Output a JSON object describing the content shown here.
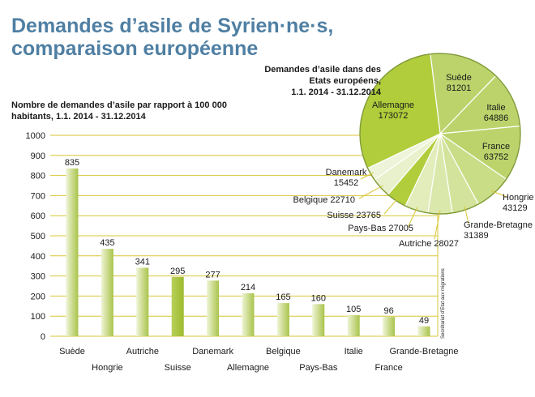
{
  "title_line1": "Demandes d’asile de Syrien·ne·s,",
  "title_line2": "comparaison européenne",
  "source": "Secrétariat d’Etat aux migrations",
  "chart_data": [
    {
      "type": "bar",
      "title_line1": "Nombre de demandes d’asile par rapport à 100 000",
      "title_line2": "habitants, 1.1. 2014 - 31.12.2014",
      "categories": [
        "Suède",
        "Hongrie",
        "Autriche",
        "Suisse",
        "Danemark",
        "Allemagne",
        "Belgique",
        "Pays-Bas",
        "Italie",
        "France",
        "Grande-Bretagne"
      ],
      "values": [
        835,
        435,
        341,
        295,
        277,
        214,
        165,
        160,
        105,
        96,
        49
      ],
      "highlight": "Suisse",
      "ylim": [
        0,
        1000
      ],
      "yticks": [
        0,
        100,
        200,
        300,
        400,
        500,
        600,
        700,
        800,
        900,
        1000
      ],
      "grid": true,
      "colors": {
        "bar": "#c9d98a",
        "highlight": "#9bbb2e",
        "grid": "#d9c634"
      }
    },
    {
      "type": "pie",
      "title_line1": "Demandes d’asile dans des",
      "title_line2": "Etats européens,",
      "title_line3": "1.1. 2014 - 31.12.2014",
      "slices": [
        {
          "label": "Suède",
          "value": 81201
        },
        {
          "label": "Italie",
          "value": 64886
        },
        {
          "label": "France",
          "value": 63752
        },
        {
          "label": "Hongrie",
          "value": 43129
        },
        {
          "label": "Grande-Bretagne",
          "value": 31389
        },
        {
          "label": "Autriche",
          "value": 28027
        },
        {
          "label": "Pays-Bas",
          "value": 27005
        },
        {
          "label": "Suisse",
          "value": 23765
        },
        {
          "label": "Belgique",
          "value": 22710
        },
        {
          "label": "Danemark",
          "value": 15452
        },
        {
          "label": "Allemagne",
          "value": 173072
        }
      ],
      "colors": [
        "#bcd36b",
        "#bcd36b",
        "#bcd36b",
        "#c9dc86",
        "#d3e39b",
        "#dbe8ac",
        "#e2edbb",
        "#b1cd3b",
        "#e9f1cc",
        "#eef4d9",
        "#b1cd3b"
      ],
      "edge_color": "#7f9a35"
    }
  ]
}
